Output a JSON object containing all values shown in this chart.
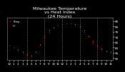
{
  "title": "Milwaukee Temperature\nvs Heat Index\n(24 Hours)",
  "background_color": "#000000",
  "plot_bg_color": "#000000",
  "x_values": [
    0,
    1,
    2,
    3,
    4,
    5,
    6,
    7,
    8,
    9,
    10,
    11,
    12,
    13,
    14,
    15,
    16,
    17,
    18,
    19,
    20,
    21,
    22,
    23
  ],
  "temp": [
    62,
    60,
    58,
    56,
    54,
    52,
    56,
    63,
    70,
    76,
    79,
    81,
    82,
    83,
    83,
    82,
    80,
    76,
    71,
    66,
    62,
    59,
    57,
    56
  ],
  "heat_index": [
    62,
    60,
    57,
    55,
    53,
    51,
    55,
    62,
    69,
    74,
    78,
    81,
    82,
    83,
    83,
    81,
    79,
    75,
    70,
    65,
    61,
    58,
    56,
    55
  ],
  "temp_color": "#ff8c00",
  "heat_index_color": "#ff0000",
  "ylim": [
    48,
    88
  ],
  "xlim": [
    -0.5,
    23.5
  ],
  "ytick_values": [
    50,
    55,
    60,
    65,
    70,
    75,
    80,
    85
  ],
  "ytick_labels": [
    "50",
    "55",
    "60",
    "65",
    "70",
    "75",
    "80",
    "85"
  ],
  "xtick_labels": [
    "12",
    "1",
    "2",
    "3",
    "4",
    "5",
    "6",
    "7",
    "8",
    "9",
    "10",
    "11",
    "12",
    "1",
    "2",
    "3",
    "4",
    "5",
    "6",
    "7",
    "8",
    "9",
    "10",
    "11"
  ],
  "grid_positions": [
    4,
    8,
    12,
    16,
    20
  ],
  "title_fontsize": 4.5,
  "tick_fontsize": 3.0,
  "marker_size": 1.2,
  "title_color": "#ffffff",
  "tick_color": "#ffffff",
  "grid_color": "#888888",
  "spine_color": "#888888"
}
